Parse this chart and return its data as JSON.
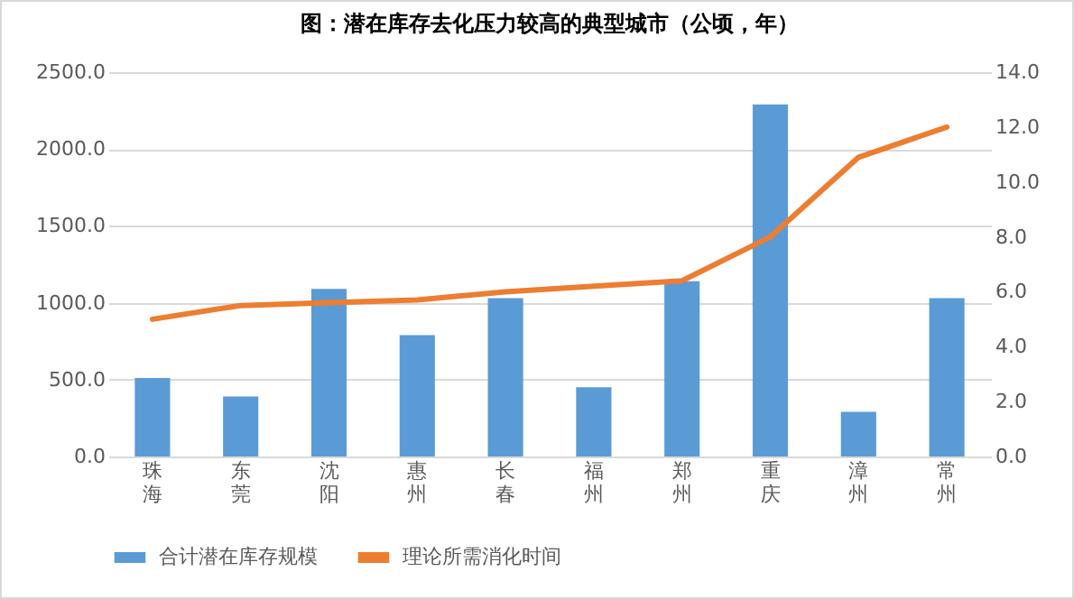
{
  "chart_data": {
    "type": "bar",
    "title": "图：潜在库存去化压力较高的典型城市（公顷，年）",
    "categories": [
      "珠海",
      "东莞",
      "沈阳",
      "惠州",
      "长春",
      "福州",
      "郑州",
      "重庆",
      "漳州",
      "常州"
    ],
    "series": [
      {
        "name": "合计潜在库存规模",
        "color": "#5b9bd5",
        "values": [
          510,
          390,
          1090,
          790,
          1030,
          450,
          1140,
          2290,
          290,
          1030
        ]
      },
      {
        "name": "理论所需消化时间",
        "type": "line",
        "axis": "y2",
        "color": "#ed7d31",
        "values": [
          5.0,
          5.5,
          5.6,
          5.7,
          6.0,
          6.2,
          6.4,
          8.0,
          10.9,
          12.0
        ]
      }
    ],
    "ylim": [
      0,
      2500
    ],
    "yticks": [
      {
        "value": 0,
        "label": "0.0"
      },
      {
        "value": 500,
        "label": "500.0"
      },
      {
        "value": 1000,
        "label": "1000.0"
      },
      {
        "value": 1500,
        "label": "1500.0"
      },
      {
        "value": 2000,
        "label": "2000.0"
      },
      {
        "value": 2500,
        "label": "2500.0"
      }
    ],
    "y2lim": [
      0,
      14
    ],
    "y2ticks": [
      {
        "value": 0,
        "label": "0.0"
      },
      {
        "value": 2,
        "label": "2.0"
      },
      {
        "value": 4,
        "label": "4.0"
      },
      {
        "value": 6,
        "label": "6.0"
      },
      {
        "value": 8,
        "label": "8.0"
      },
      {
        "value": 10,
        "label": "10.0"
      },
      {
        "value": 12,
        "label": "12.0"
      },
      {
        "value": 14,
        "label": "14.0"
      }
    ],
    "grid": "y",
    "legend": "bottom",
    "marker": "none",
    "line_style": "solid"
  }
}
